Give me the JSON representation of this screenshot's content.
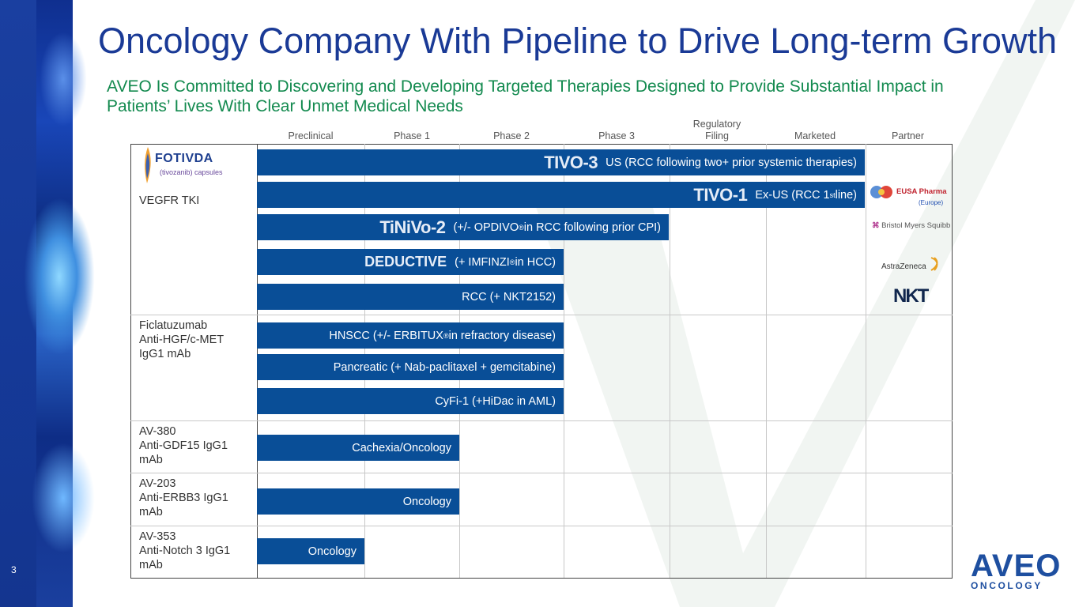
{
  "slide": {
    "title": "Oncology Company With Pipeline to Drive Long-term Growth",
    "subtitle": "AVEO Is Committed to Discovering and Developing Targeted Therapies Designed to Provide Substantial Impact in Patients’ Lives With Clear Unmet Medical Needs",
    "page_number": "3"
  },
  "stages": [
    "Preclinical",
    "Phase 1",
    "Phase 2",
    "Phase 3",
    "Regulatory Filing",
    "Marketed",
    "Partner"
  ],
  "programs": [
    {
      "label": "VEGFR TKI",
      "logo_name": "FOTIVDA",
      "logo_sub": "(tivozanib) capsules"
    },
    {
      "label": "Ficlatuzumab\nAnti-HGF/c-MET\nIgG1 mAb"
    },
    {
      "label": "AV-380\nAnti-GDF15 IgG1\nmAb"
    },
    {
      "label": "AV-203\nAnti-ERBB3 IgG1\nmAb"
    },
    {
      "label": "AV-353\nAnti-Notch 3 IgG1\nmAb"
    }
  ],
  "bars": [
    {
      "trial": "TIVO-3",
      "text": "US (RCC following two+ prior systemic therapies)",
      "progress_stage": "Marketed"
    },
    {
      "trial": "TIVO-1",
      "text": "Ex-US (RCC 1",
      "sup": "st",
      "text_after": " line)",
      "progress_stage": "Marketed"
    },
    {
      "trial": "TiNiVo-2",
      "text": "(+/- OPDIVO",
      "sup": "®",
      "text_after": " in RCC following prior CPI)",
      "progress_stage": "Phase 3"
    },
    {
      "trial": "DEDUCTIVE",
      "text": "(+ IMFINZI",
      "sup": "®",
      "text_after": " in HCC)",
      "progress_stage": "Phase 2"
    },
    {
      "text": "RCC (+ NKT2152)",
      "progress_stage": "Phase 2"
    },
    {
      "text": "HNSCC (+/- ERBITUX",
      "sup": "®",
      "text_after": " in refractory disease)",
      "progress_stage": "Phase 2"
    },
    {
      "text": "Pancreatic (+ Nab-paclitaxel + gemcitabine)",
      "progress_stage": "Phase 2"
    },
    {
      "text": "CyFi-1 (+HiDac in AML)",
      "progress_stage": "Phase 2"
    },
    {
      "text": "Cachexia/Oncology",
      "progress_stage": "Phase 1"
    },
    {
      "text": "Oncology",
      "progress_stage": "Phase 1"
    },
    {
      "text": "Oncology",
      "progress_stage": "Preclinical"
    }
  ],
  "partners": {
    "eusa": "EUSA Pharma",
    "eusa_region": "(Europe)",
    "bms": "Bristol Myers Squibb",
    "az": "AstraZeneca",
    "nkt": "NKT"
  },
  "company_logo": {
    "name": "AVEO",
    "sub": "ONCOLOGY"
  },
  "colors": {
    "title": "#1a3a96",
    "subtitle": "#138a4f",
    "bar": "#094e97",
    "band": "#1a3fa0"
  }
}
